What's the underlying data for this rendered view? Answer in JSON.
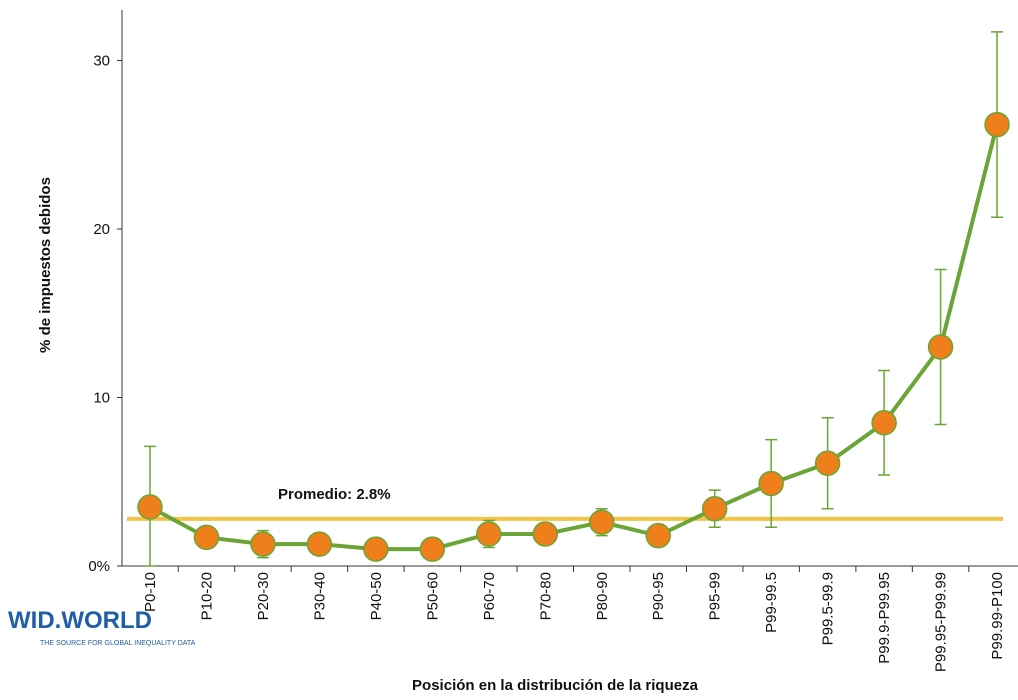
{
  "chart_data": {
    "type": "line",
    "ylabel": "% de impuestos debidos",
    "xlabel": "Posición en la distribución de la riqueza",
    "categories": [
      "P0-10",
      "P10-20",
      "P20-30",
      "P30-40",
      "P40-50",
      "P50-60",
      "P60-70",
      "P70-80",
      "P80-90",
      "P90-95",
      "P95-99",
      "P99-99.5",
      "P99.5-99.9",
      "P99.9-P99.95",
      "P99.95-P99.99",
      "P99.99-P100"
    ],
    "values": [
      3.5,
      1.7,
      1.3,
      1.3,
      1.0,
      1.0,
      1.9,
      1.9,
      2.6,
      1.8,
      3.4,
      4.9,
      6.1,
      8.5,
      13.0,
      26.2
    ],
    "errors": [
      3.6,
      0.5,
      0.8,
      0.4,
      0.3,
      0.3,
      0.8,
      0.5,
      0.8,
      0.5,
      1.1,
      2.6,
      2.7,
      3.1,
      4.6,
      5.5
    ],
    "color": "#6aa535",
    "marker_color": "#ee7f1a",
    "average": 2.8,
    "average_label": "Promedio: 2.8%",
    "average_color": "#f5c342",
    "ylim": [
      0,
      33
    ],
    "yticks": [
      {
        "value": 0,
        "label": "0%"
      },
      10,
      20,
      30
    ],
    "grid": false
  },
  "logo": {
    "name": "WID.WORLD",
    "tagline": "THE SOURCE FOR GLOBAL INEQUALITY DATA"
  }
}
